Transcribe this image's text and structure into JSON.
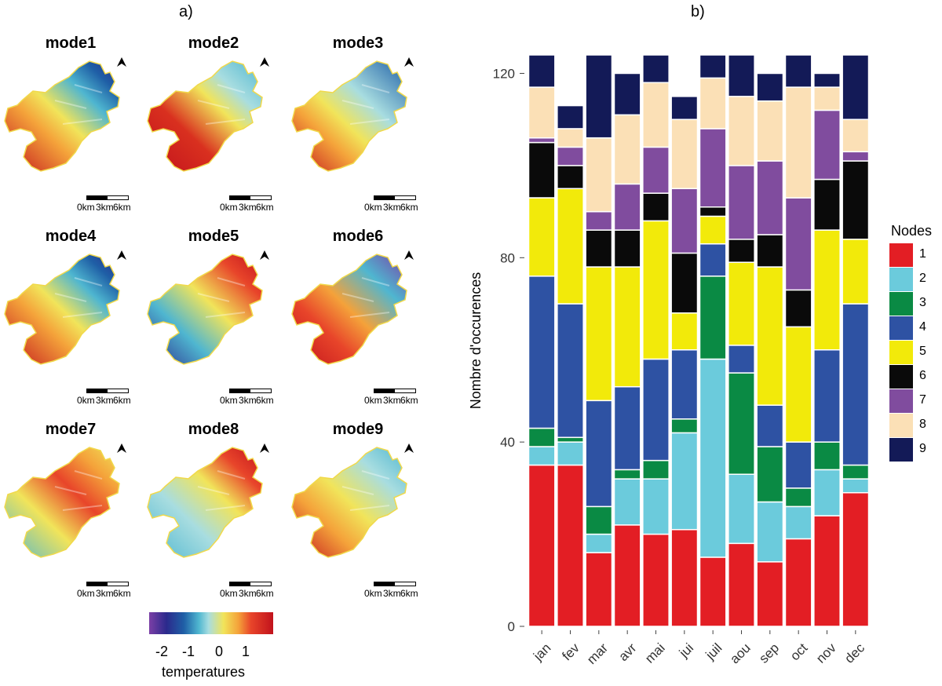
{
  "panel_a_label": "a)",
  "panel_b_label": "b)",
  "maps": [
    {
      "title": "mode1",
      "scheme": "m1"
    },
    {
      "title": "mode2",
      "scheme": "m2"
    },
    {
      "title": "mode3",
      "scheme": "m3"
    },
    {
      "title": "mode4",
      "scheme": "m1"
    },
    {
      "title": "mode5",
      "scheme": "m5"
    },
    {
      "title": "mode6",
      "scheme": "m6"
    },
    {
      "title": "mode7",
      "scheme": "m7"
    },
    {
      "title": "mode8",
      "scheme": "m8"
    },
    {
      "title": "mode9",
      "scheme": "m9"
    }
  ],
  "scale_labels": [
    "0km",
    "3km",
    "6km"
  ],
  "colorbar": {
    "ticks": [
      "-2",
      "-1",
      "0",
      "1"
    ],
    "title": "temperatures"
  },
  "chart_data": {
    "type": "bar",
    "stacked": true,
    "title": "",
    "xlabel": "",
    "ylabel": "Nombre d'occurences",
    "ylim": [
      0,
      124
    ],
    "yticks": [
      "0",
      "40",
      "80",
      "120"
    ],
    "categories": [
      "jan",
      "fev",
      "mar",
      "avr",
      "mai",
      "jui",
      "juil",
      "aou",
      "sep",
      "oct",
      "nov",
      "dec"
    ],
    "legend_title": "Nodes",
    "series": [
      {
        "name": "1",
        "color": "#e31e24",
        "values": [
          35,
          35,
          16,
          22,
          20,
          21,
          15,
          18,
          14,
          19,
          24,
          29
        ]
      },
      {
        "name": "2",
        "color": "#6bcbdc",
        "values": [
          4,
          5,
          4,
          10,
          12,
          21,
          43,
          15,
          13,
          7,
          10,
          3
        ]
      },
      {
        "name": "3",
        "color": "#0a8a44",
        "values": [
          4,
          1,
          6,
          2,
          4,
          3,
          18,
          22,
          12,
          4,
          6,
          3
        ]
      },
      {
        "name": "4",
        "color": "#2e52a3",
        "values": [
          33,
          29,
          23,
          18,
          22,
          15,
          7,
          6,
          9,
          10,
          20,
          35
        ]
      },
      {
        "name": "5",
        "color": "#f2ea0a",
        "values": [
          17,
          25,
          29,
          26,
          30,
          8,
          6,
          18,
          30,
          25,
          26,
          14
        ]
      },
      {
        "name": "6",
        "color": "#0a0a0a",
        "values": [
          12,
          5,
          8,
          8,
          6,
          13,
          2,
          5,
          7,
          8,
          11,
          17
        ]
      },
      {
        "name": "7",
        "color": "#804c9e",
        "values": [
          1,
          4,
          4,
          10,
          10,
          14,
          17,
          16,
          16,
          20,
          15,
          2
        ]
      },
      {
        "name": "8",
        "color": "#fbe0b6",
        "values": [
          11,
          4,
          16,
          15,
          14,
          15,
          11,
          15,
          13,
          24,
          5,
          7
        ]
      },
      {
        "name": "9",
        "color": "#131a57",
        "values": [
          7,
          5,
          18,
          9,
          6,
          5,
          5,
          9,
          6,
          7,
          3,
          14
        ]
      }
    ]
  }
}
